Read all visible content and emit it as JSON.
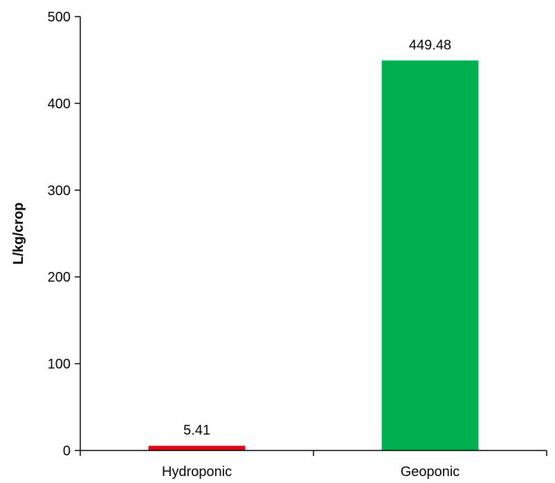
{
  "chart_data": {
    "type": "bar",
    "title": "",
    "xlabel": "",
    "ylabel": "L/kg/crop",
    "categories": [
      "Hydroponic",
      "Geoponic"
    ],
    "values": [
      5.41,
      449.48
    ],
    "data_labels": [
      "5.41",
      "449.48"
    ],
    "colors": [
      "#e30613",
      "#00b050"
    ],
    "ylim": [
      0,
      500
    ],
    "yticks": [
      0,
      100,
      200,
      300,
      400,
      500
    ],
    "ytick_labels": [
      "0",
      "100",
      "200",
      "300",
      "400",
      "500"
    ],
    "grid": false,
    "legend": "none"
  }
}
